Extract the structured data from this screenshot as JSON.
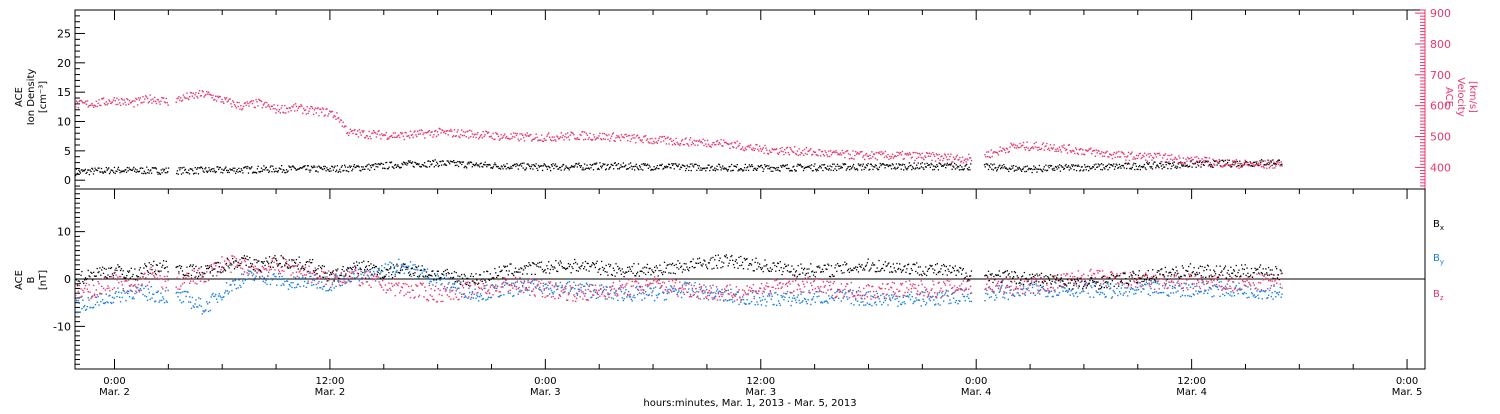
{
  "chart_data": [
    {
      "type": "scatter",
      "panel": "top",
      "ylabel_lines": [
        "ACE",
        "Ion Density",
        "[cm⁻³]"
      ],
      "y2label_lines": [
        "ACE",
        "Velocity",
        "[km/s]"
      ],
      "ylim": [
        -1.5,
        29
      ],
      "y_ticks": [
        0,
        5,
        10,
        15,
        20,
        25
      ],
      "y2lim": [
        330,
        910
      ],
      "y2_ticks": [
        400,
        500,
        600,
        700,
        800,
        900
      ],
      "x_ticks": [
        {
          "label_top": "0:00",
          "label_bottom": "Mar. 2",
          "t": 24
        },
        {
          "label_top": "12:00",
          "label_bottom": "Mar. 2",
          "t": 36
        },
        {
          "label_top": "0:00",
          "label_bottom": "Mar. 3",
          "t": 48
        },
        {
          "label_top": "12:00",
          "label_bottom": "Mar. 3",
          "t": 60
        },
        {
          "label_top": "0:00",
          "label_bottom": "Mar. 4",
          "t": 72
        },
        {
          "label_top": "12:00",
          "label_bottom": "Mar. 4",
          "t": 84
        },
        {
          "label_top": "0:00",
          "label_bottom": "Mar. 5",
          "t": 96
        }
      ],
      "xlim": [
        21.8,
        97.0
      ],
      "series": [
        {
          "color": "#000000",
          "axis": "left",
          "x": [
            21.8,
            24,
            27,
            30,
            33,
            36,
            38,
            40,
            42,
            45,
            48,
            51,
            54,
            57,
            60,
            63,
            66,
            69,
            72,
            75,
            78,
            81,
            84,
            87,
            89
          ],
          "y": [
            1.5,
            1.8,
            1.7,
            1.8,
            2.0,
            2.0,
            2.3,
            2.8,
            3.0,
            2.6,
            2.3,
            2.5,
            2.4,
            2.3,
            2.2,
            2.3,
            2.4,
            2.5,
            2.4,
            2.0,
            2.3,
            2.5,
            2.8,
            3.0,
            3.2
          ]
        },
        {
          "color": "#e8386a",
          "axis": "right",
          "x": [
            21.8,
            23,
            24,
            25,
            26,
            27,
            28,
            29,
            30,
            31,
            32,
            33,
            34,
            35,
            36,
            36.5,
            37,
            38,
            40,
            42,
            44,
            46,
            48,
            50,
            52,
            54,
            56,
            58,
            60,
            62,
            64,
            66,
            68,
            70,
            71.5,
            73,
            74,
            76,
            78,
            80,
            82,
            84,
            86,
            88,
            89
          ],
          "y": [
            605,
            610,
            620,
            610,
            625,
            615,
            630,
            640,
            620,
            600,
            610,
            590,
            595,
            585,
            580,
            560,
            515,
            510,
            505,
            515,
            510,
            500,
            500,
            505,
            500,
            490,
            485,
            480,
            460,
            455,
            445,
            440,
            440,
            435,
            430,
            450,
            470,
            470,
            455,
            440,
            435,
            425,
            415,
            410,
            415
          ]
        }
      ]
    },
    {
      "type": "scatter",
      "panel": "bottom",
      "ylabel_lines": [
        "ACE",
        "B",
        "[nT]"
      ],
      "ylim": [
        -19,
        19
      ],
      "y_ticks": [
        -10,
        0,
        10
      ],
      "x_ticks": [
        {
          "label_top": "0:00",
          "label_bottom": "Mar. 2",
          "t": 24
        },
        {
          "label_top": "12:00",
          "label_bottom": "Mar. 2",
          "t": 36
        },
        {
          "label_top": "0:00",
          "label_bottom": "Mar. 3",
          "t": 48
        },
        {
          "label_top": "12:00",
          "label_bottom": "Mar. 3",
          "t": 60
        },
        {
          "label_top": "0:00",
          "label_bottom": "Mar. 4",
          "t": 72
        },
        {
          "label_top": "12:00",
          "label_bottom": "Mar. 4",
          "t": 84
        },
        {
          "label_top": "0:00",
          "label_bottom": "Mar. 5",
          "t": 96
        }
      ],
      "xlim": [
        21.8,
        97.0
      ],
      "xlabel": "hours:minutes, Mar.  1, 2013 - Mar.  5, 2013",
      "series": [
        {
          "name": "Bx",
          "name_main": "B",
          "name_sub": "x",
          "color": "#000000",
          "x": [
            21.8,
            23,
            24,
            25,
            26,
            27,
            28,
            29,
            30,
            31,
            32,
            33,
            34,
            35,
            36,
            37,
            38,
            39,
            40,
            42,
            44,
            46,
            48,
            50,
            52,
            54,
            56,
            58,
            60,
            62,
            64,
            66,
            68,
            70,
            72,
            74,
            76,
            78,
            80,
            82,
            84,
            86,
            88,
            89
          ],
          "y": [
            0,
            1.5,
            2.0,
            1.0,
            2.5,
            3.0,
            2.0,
            1.5,
            3.0,
            4.0,
            3.0,
            4.0,
            3.5,
            3.0,
            0.5,
            2.0,
            3.0,
            1.0,
            2.5,
            1.0,
            0,
            2.0,
            2.5,
            3.0,
            2.0,
            2.0,
            3.0,
            4.0,
            3.0,
            2.0,
            2.0,
            3.0,
            2.5,
            2.0,
            1.0,
            0.5,
            0,
            -1.0,
            0,
            1.0,
            2.0,
            1.5,
            2.0,
            1.0
          ]
        },
        {
          "name": "By",
          "name_main": "B",
          "name_sub": "y",
          "color": "#1a7fe0",
          "x": [
            21.8,
            23,
            24,
            25,
            26,
            27,
            28,
            29,
            30,
            31,
            32,
            33,
            34,
            35,
            36,
            37,
            38,
            39,
            40,
            42,
            44,
            46,
            48,
            50,
            52,
            54,
            56,
            58,
            60,
            62,
            64,
            66,
            68,
            70,
            72,
            74,
            76,
            78,
            80,
            82,
            84,
            86,
            88,
            89
          ],
          "y": [
            -5.5,
            -4.5,
            -3.5,
            -2.5,
            -3.0,
            -3.5,
            -4.0,
            -6.0,
            -2.5,
            0,
            1.0,
            0,
            -1.0,
            0,
            -1.0,
            1.0,
            0.5,
            2.0,
            3.0,
            0,
            -3.0,
            -2.0,
            -1.5,
            -2.0,
            -3.0,
            -3.0,
            -2.0,
            -3.5,
            -4.0,
            -4.0,
            -3.5,
            -4.0,
            -4.0,
            -4.0,
            -3.0,
            -2.5,
            -2.0,
            -2.0,
            -2.5,
            -2.0,
            -2.0,
            -2.0,
            -2.5,
            -2.5
          ]
        },
        {
          "name": "Bz",
          "name_main": "B",
          "name_sub": "z",
          "color": "#e8386a",
          "x": [
            21.8,
            23,
            24,
            25,
            26,
            27,
            28,
            29,
            30,
            31,
            32,
            33,
            34,
            35,
            36,
            37,
            38,
            39,
            40,
            42,
            44,
            46,
            48,
            50,
            52,
            54,
            56,
            58,
            60,
            62,
            64,
            66,
            68,
            70,
            72,
            74,
            76,
            78,
            80,
            82,
            84,
            86,
            88,
            89
          ],
          "y": [
            -3.0,
            -2.0,
            0,
            -2.0,
            1.0,
            -1.0,
            0,
            1.0,
            3.5,
            3.0,
            2.0,
            3.0,
            2.5,
            1.0,
            0,
            1.0,
            0,
            -1.0,
            -2.0,
            -3.0,
            -2.0,
            -1.0,
            -2.0,
            -3.0,
            -2.0,
            -1.0,
            -2.0,
            -3.0,
            -2.0,
            -1.0,
            -2.0,
            -2.5,
            -2.0,
            -2.0,
            -1.0,
            -1.5,
            -1.0,
            0.5,
            0,
            -0.5,
            -0.5,
            -1.0,
            -0.5,
            -0.5
          ]
        }
      ]
    }
  ],
  "colors": {
    "black": "#000000",
    "pink": "#e8386a",
    "blue": "#1a7fe0",
    "axis": "#000000"
  }
}
